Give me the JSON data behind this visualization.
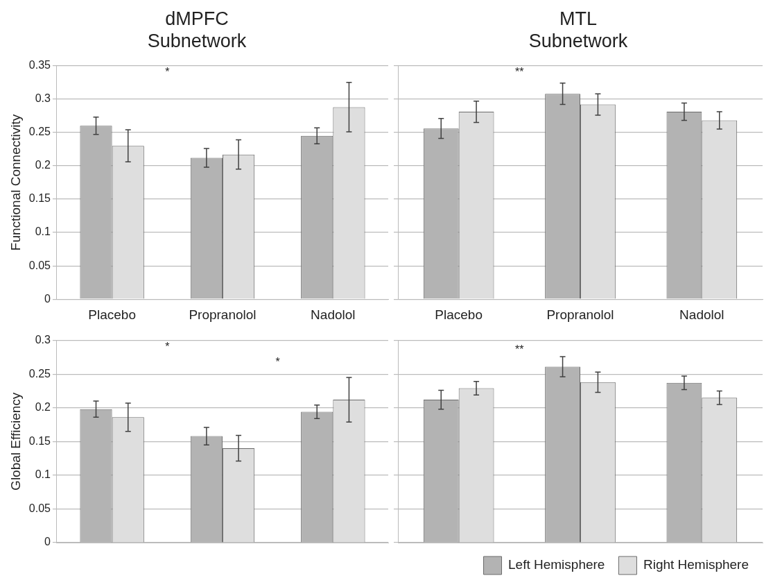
{
  "chart_data": [
    {
      "type": "bar",
      "title": [
        "dMPFC",
        "Subnetwork"
      ],
      "ylabel": "Functional Connectivity",
      "categories": [
        "Placebo",
        "Propranolol",
        "Nadolol"
      ],
      "ylim": [
        0,
        0.35
      ],
      "yticks": [
        0,
        0.05,
        0.1,
        0.15,
        0.2,
        0.25,
        0.3,
        0.35
      ],
      "grid": "y",
      "annotations": [
        "*"
      ],
      "series": [
        {
          "color": "#b3b3b3",
          "values": [
            0.26,
            0.212,
            0.245
          ],
          "errors": [
            0.013,
            0.014,
            0.012
          ]
        },
        {
          "color": "#dedede",
          "values": [
            0.23,
            0.217,
            0.288
          ],
          "errors": [
            0.024,
            0.022,
            0.037
          ]
        }
      ]
    },
    {
      "type": "bar",
      "title": [
        "MTL",
        "Subnetwork"
      ],
      "categories": [
        "Placebo",
        "Propranolol",
        "Nadolol"
      ],
      "ylim": [
        0,
        0.35
      ],
      "yticks": [
        0,
        0.05,
        0.1,
        0.15,
        0.2,
        0.25,
        0.3,
        0.35
      ],
      "grid": "y",
      "tick_labels": "x",
      "annotations": [
        "**"
      ],
      "series": [
        {
          "color": "#b3b3b3",
          "values": [
            0.256,
            0.308,
            0.281
          ],
          "errors": [
            0.015,
            0.016,
            0.013
          ]
        },
        {
          "color": "#dedede",
          "values": [
            0.281,
            0.292,
            0.268
          ],
          "errors": [
            0.016,
            0.016,
            0.013
          ]
        }
      ]
    },
    {
      "type": "bar",
      "ylabel": "Global Efficiency",
      "categories": [
        null,
        null,
        null
      ],
      "ylim": [
        0,
        0.3
      ],
      "yticks": [
        0,
        0.05,
        0.1,
        0.15,
        0.2,
        0.25,
        0.3
      ],
      "grid": "y",
      "tick_labels": "y",
      "annotations": [
        "*",
        "*"
      ],
      "series": [
        {
          "color": "#b3b3b3",
          "values": [
            0.198,
            0.158,
            0.194
          ],
          "errors": [
            0.012,
            0.013,
            0.01
          ]
        },
        {
          "color": "#dedede",
          "values": [
            0.186,
            0.14,
            0.212
          ],
          "errors": [
            0.021,
            0.019,
            0.033
          ]
        }
      ]
    },
    {
      "type": "bar",
      "categories": [
        null,
        null,
        null
      ],
      "ylim": [
        0,
        0.3
      ],
      "yticks": [
        0,
        0.05,
        0.1,
        0.15,
        0.2,
        0.25,
        0.3
      ],
      "grid": "y",
      "tick_labels": false,
      "legend": "bottom right",
      "annotations": [
        "**"
      ],
      "series": [
        {
          "name": "Left Hemisphere",
          "color": "#b3b3b3",
          "values": [
            0.212,
            0.261,
            0.237
          ],
          "errors": [
            0.014,
            0.015,
            0.01
          ]
        },
        {
          "name": "Right Hemisphere",
          "color": "#dedede",
          "values": [
            0.229,
            0.238,
            0.215
          ],
          "errors": [
            0.01,
            0.015,
            0.01
          ]
        }
      ]
    }
  ]
}
